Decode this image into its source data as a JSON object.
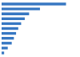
{
  "chart_data": {
    "type": "bar",
    "orientation": "horizontal",
    "categories": [
      null,
      null,
      null,
      null,
      null,
      null,
      null,
      null,
      null,
      null,
      null
    ],
    "values": [
      8.9,
      5.3,
      3.8,
      3.2,
      2.7,
      2.3,
      2.0,
      1.7,
      1.4,
      0.85,
      0.35
    ],
    "color": "#3777c2",
    "xlim": [
      0,
      10.5
    ],
    "grid": false,
    "tick_labels": false
  }
}
